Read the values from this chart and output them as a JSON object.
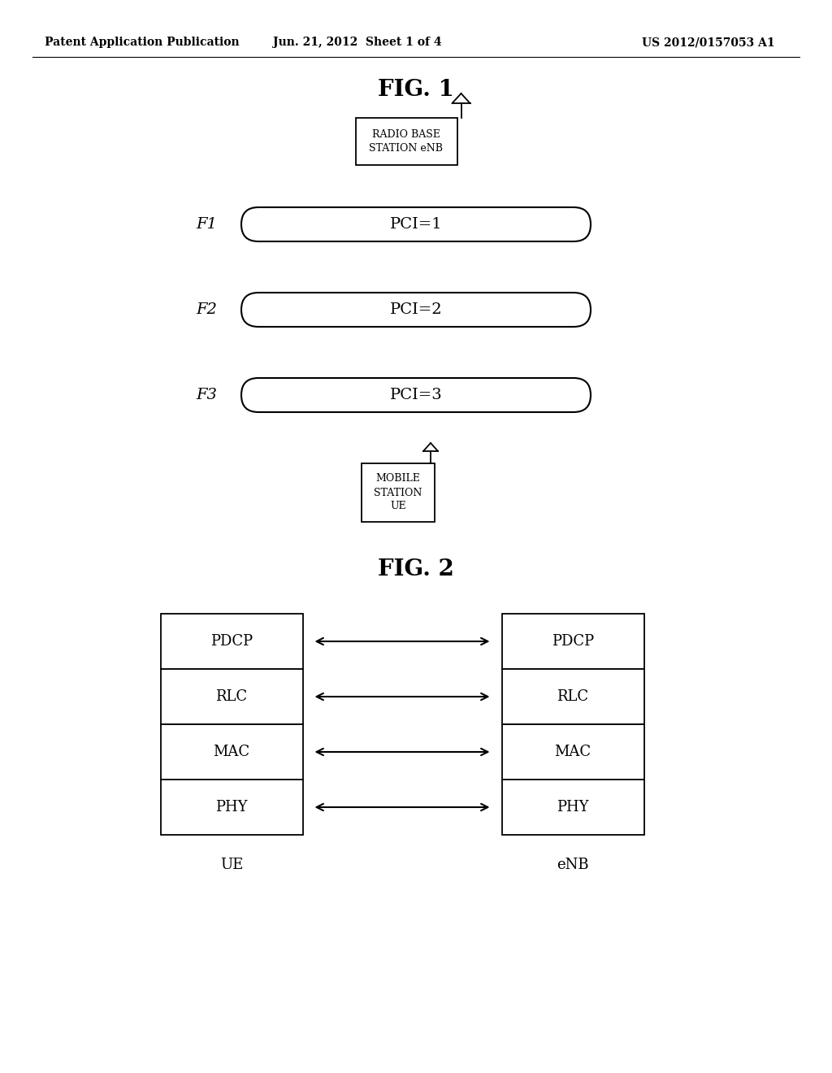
{
  "header_left": "Patent Application Publication",
  "header_mid": "Jun. 21, 2012  Sheet 1 of 4",
  "header_right": "US 2012/0157053 A1",
  "fig1_title": "FIG. 1",
  "fig2_title": "FIG. 2",
  "rbs_label": "RADIO BASE\nSTATION eNB",
  "ms_label": "MOBILE\nSTATION\nUE",
  "freq_labels": [
    "F1",
    "F2",
    "F3"
  ],
  "pci_labels": [
    "PCI=1",
    "PCI=2",
    "PCI=3"
  ],
  "stack_layers": [
    "PDCP",
    "RLC",
    "MAC",
    "PHY"
  ],
  "ue_label": "UE",
  "enb_label": "eNB",
  "bg_color": "#ffffff",
  "fg_color": "#000000",
  "header_fontsize": 10,
  "fig_title_fontsize": 20,
  "label_fontsize": 13,
  "stack_fontsize": 13,
  "rbs_fontsize": 9,
  "ms_fontsize": 9,
  "pci_fontsize": 14,
  "freq_fontsize": 14
}
